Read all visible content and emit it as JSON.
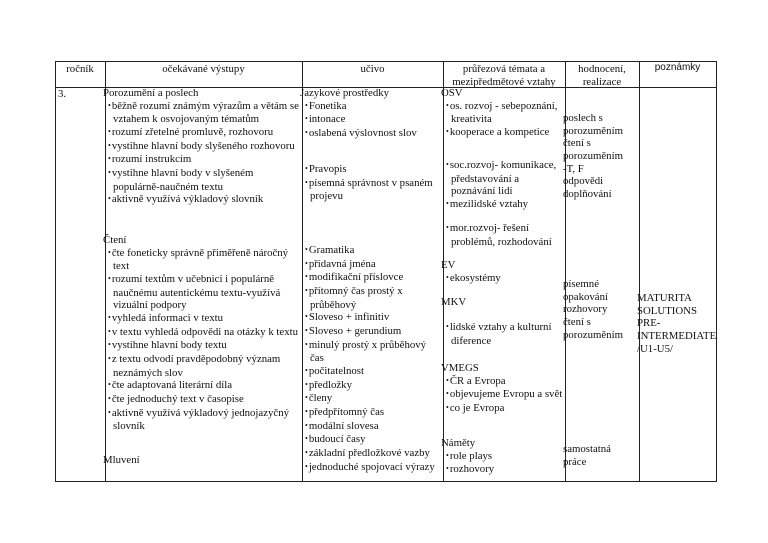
{
  "header": {
    "rocnik": "ročník",
    "vystupy": "očekávané výstupy",
    "ucivo": "učivo",
    "temata_line1": "průřezová témata a",
    "temata_line2": "mezipředmětové vztahy",
    "hodnoceni_line1": "hodnocení,",
    "hodnoceni_line2": "realizace",
    "poznamky": "poznámky"
  },
  "row": {
    "rocnik": "3.",
    "vystupy": [
      {
        "heading": "Porozumění a poslech",
        "items": [
          "běžně rozumí známým výrazům a větám se vztahem k osvojovaným tématům",
          "rozumí zřetelné promluvě, rozhovoru",
          "vystihne hlavní body slyšeného rozhovoru",
          "rozumí instrukcím",
          "vystihne hlavní body v slyšeném populárně-naučném textu",
          "aktivně využívá výkladový slovník"
        ]
      },
      {
        "heading": "Čtení",
        "items": [
          "čte foneticky správně přiměřeně náročný text",
          "rozumí textům v učebnici i populárně naučnému autentickému textu-využívá vizuální podpory",
          "vyhledá informaci v textu",
          "v textu vyhledá odpovědi na otázky k textu",
          "vystihne hlavní body textu",
          "z textu odvodí pravděpodobný význam neznámých slov",
          "čte adaptovaná literární díla",
          "čte jednoduchý text v časopise",
          "aktivně využívá výkladový jednojazyčný slovník"
        ]
      },
      {
        "heading": "Mluvení",
        "items": []
      }
    ],
    "ucivo": [
      {
        "heading": "Jazykové prostředky",
        "items": [
          "Fonetika",
          "intonace",
          "oslabená výslovnost slov"
        ]
      },
      {
        "heading": "",
        "items": [
          "Pravopis",
          "písemná správnost v psaném projevu"
        ]
      },
      {
        "heading": "",
        "items": [
          "Gramatika",
          "přídavná jména",
          "modifikační příslovce",
          "přítomný čas prostý x průběhový",
          "Sloveso + infinitiv",
          "Sloveso + gerundium",
          "minulý prostý x průběhový čas",
          "počitatelnost",
          "předložky",
          "členy",
          "předpřítomný čas",
          "modální slovesa",
          "budoucí časy",
          "základní předložkové vazby",
          "jednoduché spojovací výrazy"
        ]
      }
    ],
    "temata": [
      {
        "heading": "OSV",
        "items": [
          "os. rozvoj - sebepoznání, kreativita",
          "kooperace a kompetice"
        ]
      },
      {
        "heading": "",
        "items": [
          "soc.rozvoj- komunikace, představování a poznávání lidí",
          "mezilidské vztahy"
        ]
      },
      {
        "heading": "",
        "items": [
          "mor.rozvoj- řešení problémů, rozhodování"
        ]
      },
      {
        "heading": "EV",
        "items": [
          "ekosystémy"
        ]
      },
      {
        "heading": "MKV",
        "items": []
      },
      {
        "heading": "",
        "items": [
          "lidské vztahy a kulturní diference"
        ]
      },
      {
        "heading": "VMEGS",
        "items": [
          "ČR a Evropa",
          "objevujeme Evropu a svět",
          "co je Evropa"
        ]
      },
      {
        "heading": "Náměty",
        "items": [
          "role plays",
          "rozhovory"
        ]
      }
    ],
    "hodnoceni": [
      {
        "heading": "",
        "lines": [
          "poslech s",
          "porozuměním",
          "čtení s",
          "porozuměním",
          "-T, F",
          "odpovědi",
          "doplňování"
        ]
      },
      {
        "heading": "",
        "lines": [
          "písemné",
          "opakování",
          "rozhovory",
          "čtení s",
          "porozuměním"
        ]
      },
      {
        "heading": "",
        "lines": [
          "samostatná",
          "práce"
        ]
      }
    ],
    "poznamky": [
      {
        "heading": "",
        "lines": [
          "MATURITA",
          "SOLUTIONS",
          "PRE-",
          "INTERMEDIATE",
          "/U1-U5/"
        ]
      }
    ]
  }
}
